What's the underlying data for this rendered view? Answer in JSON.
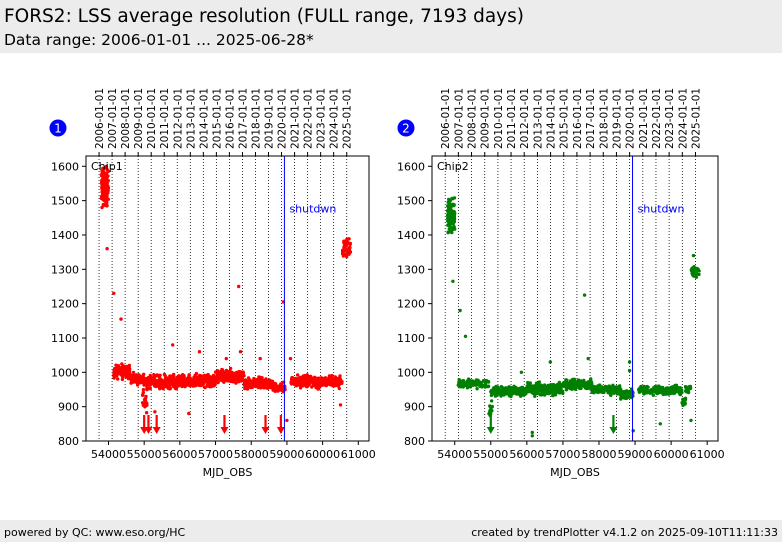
{
  "header": {
    "title": "FORS2: LSS average resolution (FULL range, 7193 days)",
    "subtitle": "Data range: 2006-01-01 ... 2025-06-28*"
  },
  "footer": {
    "left": "powered by QC: www.eso.org/HC",
    "right": "created by trendPlotter v4.1.2 on 2025-09-10T11:11:33"
  },
  "chart_data": [
    {
      "type": "scatter",
      "badge": "1",
      "panel_label": "Chip1",
      "color": "#ff0000",
      "xlabel": "MJD_OBS",
      "ylabel": "",
      "xlim": [
        53370,
        61300
      ],
      "ylim": [
        800,
        1630
      ],
      "x_ticks": [
        54000,
        55000,
        56000,
        57000,
        58000,
        59000,
        60000,
        61000
      ],
      "y_ticks": [
        800,
        900,
        1000,
        1100,
        1200,
        1300,
        1400,
        1500,
        1600
      ],
      "top_ticks": [
        "2006-01-01",
        "2007-01-01",
        "2008-01-01",
        "2009-01-01",
        "2010-01-01",
        "2011-01-01",
        "2012-01-01",
        "2013-01-01",
        "2014-01-01",
        "2015-01-01",
        "2016-01-01",
        "2017-01-01",
        "2018-01-01",
        "2019-01-01",
        "2020-01-01",
        "2021-01-01",
        "2022-01-01",
        "2023-01-01",
        "2024-01-01",
        "2025-01-01"
      ],
      "top_tick_mjd": [
        53736,
        54101,
        54466,
        54832,
        55197,
        55562,
        55927,
        56293,
        56658,
        57023,
        57388,
        57754,
        58119,
        58484,
        58849,
        59215,
        59580,
        59945,
        60310,
        60676
      ],
      "shutdown": {
        "mjd": 58930,
        "label": "shutdwn"
      },
      "arrows_mjd": [
        55000,
        55120,
        55350,
        57250,
        58400,
        58830
      ],
      "clusters": [
        {
          "x": [
            53800,
            54000
          ],
          "y": [
            1460,
            1620
          ],
          "n": 130
        },
        {
          "x": [
            54150,
            54600
          ],
          "y": [
            975,
            1030
          ],
          "n": 110
        },
        {
          "x": [
            54600,
            55000
          ],
          "y": [
            960,
            1005
          ],
          "n": 60
        },
        {
          "x": [
            54950,
            55100
          ],
          "y": [
            870,
            1000
          ],
          "n": 25
        },
        {
          "x": [
            55000,
            56000
          ],
          "y": [
            945,
            1000
          ],
          "n": 200
        },
        {
          "x": [
            56000,
            57000
          ],
          "y": [
            945,
            1000
          ],
          "n": 200
        },
        {
          "x": [
            57000,
            57800
          ],
          "y": [
            960,
            1015
          ],
          "n": 170
        },
        {
          "x": [
            57800,
            58600
          ],
          "y": [
            945,
            990
          ],
          "n": 150
        },
        {
          "x": [
            58600,
            58950
          ],
          "y": [
            935,
            980
          ],
          "n": 60
        },
        {
          "x": [
            59100,
            60000
          ],
          "y": [
            945,
            1000
          ],
          "n": 170
        },
        {
          "x": [
            60000,
            60550
          ],
          "y": [
            950,
            995
          ],
          "n": 110
        },
        {
          "x": [
            60560,
            60780
          ],
          "y": [
            1320,
            1410
          ],
          "n": 50
        }
      ],
      "outliers": [
        [
          53960,
          1360
        ],
        [
          54150,
          1230
        ],
        [
          54350,
          1155
        ],
        [
          55800,
          1080
        ],
        [
          56550,
          1060
        ],
        [
          57650,
          1250
        ],
        [
          57700,
          1060
        ],
        [
          58900,
          1205
        ],
        [
          59100,
          1040
        ],
        [
          58250,
          1040
        ],
        [
          60500,
          905
        ],
        [
          59000,
          860
        ],
        [
          55300,
          885
        ],
        [
          56250,
          880
        ],
        [
          57300,
          1040
        ]
      ]
    },
    {
      "type": "scatter",
      "badge": "2",
      "panel_label": "Chip2",
      "color": "#008000",
      "xlabel": "MJD_OBS",
      "ylabel": "",
      "xlim": [
        53370,
        61300
      ],
      "ylim": [
        800,
        1630
      ],
      "x_ticks": [
        54000,
        55000,
        56000,
        57000,
        58000,
        59000,
        60000,
        61000
      ],
      "y_ticks": [
        800,
        900,
        1000,
        1100,
        1200,
        1300,
        1400,
        1500,
        1600
      ],
      "top_ticks": [
        "2006-01-01",
        "2007-01-01",
        "2008-01-01",
        "2009-01-01",
        "2010-01-01",
        "2011-01-01",
        "2012-01-01",
        "2013-01-01",
        "2014-01-01",
        "2015-01-01",
        "2016-01-01",
        "2017-01-01",
        "2018-01-01",
        "2019-01-01",
        "2020-01-01",
        "2021-01-01",
        "2022-01-01",
        "2023-01-01",
        "2024-01-01",
        "2025-01-01"
      ],
      "top_tick_mjd": [
        53736,
        54101,
        54466,
        54832,
        55197,
        55562,
        55927,
        56293,
        56658,
        57023,
        57388,
        57754,
        58119,
        58484,
        58849,
        59215,
        59580,
        59945,
        60310,
        60676
      ],
      "shutdown": {
        "mjd": 58930,
        "label": "shutdwn"
      },
      "arrows_mjd": [
        55000,
        58400
      ],
      "clusters": [
        {
          "x": [
            53800,
            54000
          ],
          "y": [
            1390,
            1520
          ],
          "n": 110
        },
        {
          "x": [
            54100,
            54950
          ],
          "y": [
            950,
            985
          ],
          "n": 100
        },
        {
          "x": [
            54950,
            55050
          ],
          "y": [
            860,
            930
          ],
          "n": 15
        },
        {
          "x": [
            55000,
            56000
          ],
          "y": [
            925,
            965
          ],
          "n": 180
        },
        {
          "x": [
            56000,
            57000
          ],
          "y": [
            925,
            975
          ],
          "n": 180
        },
        {
          "x": [
            57000,
            57800
          ],
          "y": [
            945,
            985
          ],
          "n": 160
        },
        {
          "x": [
            57800,
            58600
          ],
          "y": [
            930,
            970
          ],
          "n": 140
        },
        {
          "x": [
            58600,
            58950
          ],
          "y": [
            915,
            955
          ],
          "n": 60
        },
        {
          "x": [
            59100,
            60000
          ],
          "y": [
            930,
            965
          ],
          "n": 160
        },
        {
          "x": [
            60000,
            60300
          ],
          "y": [
            930,
            965
          ],
          "n": 60
        },
        {
          "x": [
            60300,
            60400
          ],
          "y": [
            895,
            935
          ],
          "n": 20
        },
        {
          "x": [
            60400,
            60550
          ],
          "y": [
            935,
            965
          ],
          "n": 25
        },
        {
          "x": [
            60560,
            60780
          ],
          "y": [
            1270,
            1320
          ],
          "n": 45
        }
      ],
      "outliers": [
        [
          53950,
          1265
        ],
        [
          54150,
          1180
        ],
        [
          54300,
          1105
        ],
        [
          55850,
          1000
        ],
        [
          56650,
          1030
        ],
        [
          57600,
          1225
        ],
        [
          57700,
          1040
        ],
        [
          58850,
          1005
        ],
        [
          58850,
          1030
        ],
        [
          56150,
          825
        ],
        [
          56150,
          815
        ],
        [
          58950,
          830
        ],
        [
          59700,
          850
        ],
        [
          60550,
          860
        ],
        [
          60620,
          1340
        ]
      ]
    }
  ]
}
